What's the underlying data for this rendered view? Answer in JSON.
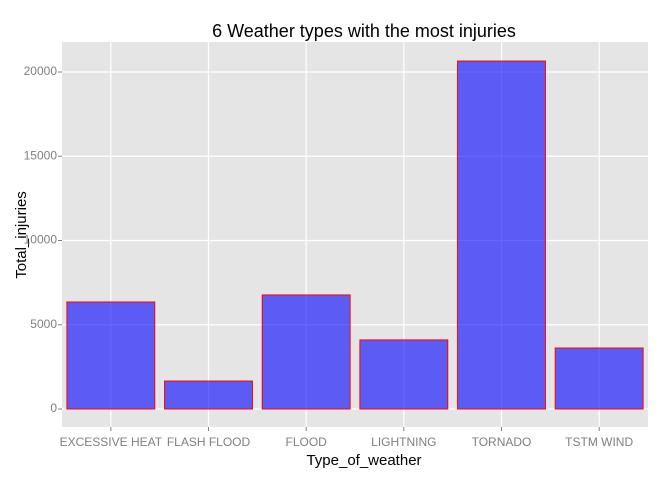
{
  "chart_data": {
    "type": "bar",
    "title": "6 Weather types with the most injuries",
    "x_label": "Type_of_weather",
    "y_label": "Total_injuries",
    "categories": [
      "EXCESSIVE HEAT",
      "FLASH FLOOD",
      "FLOOD",
      "LIGHTNING",
      "TORNADO",
      "TSTM WIND"
    ],
    "values": [
      6350,
      1660,
      6770,
      4100,
      20650,
      3620
    ],
    "color": "#0000ff",
    "edge_color": "#ff0000",
    "ylim": [
      -1068,
      21780
    ],
    "yticks": [
      0,
      5000,
      10000,
      15000,
      20000
    ],
    "grid": true
  }
}
